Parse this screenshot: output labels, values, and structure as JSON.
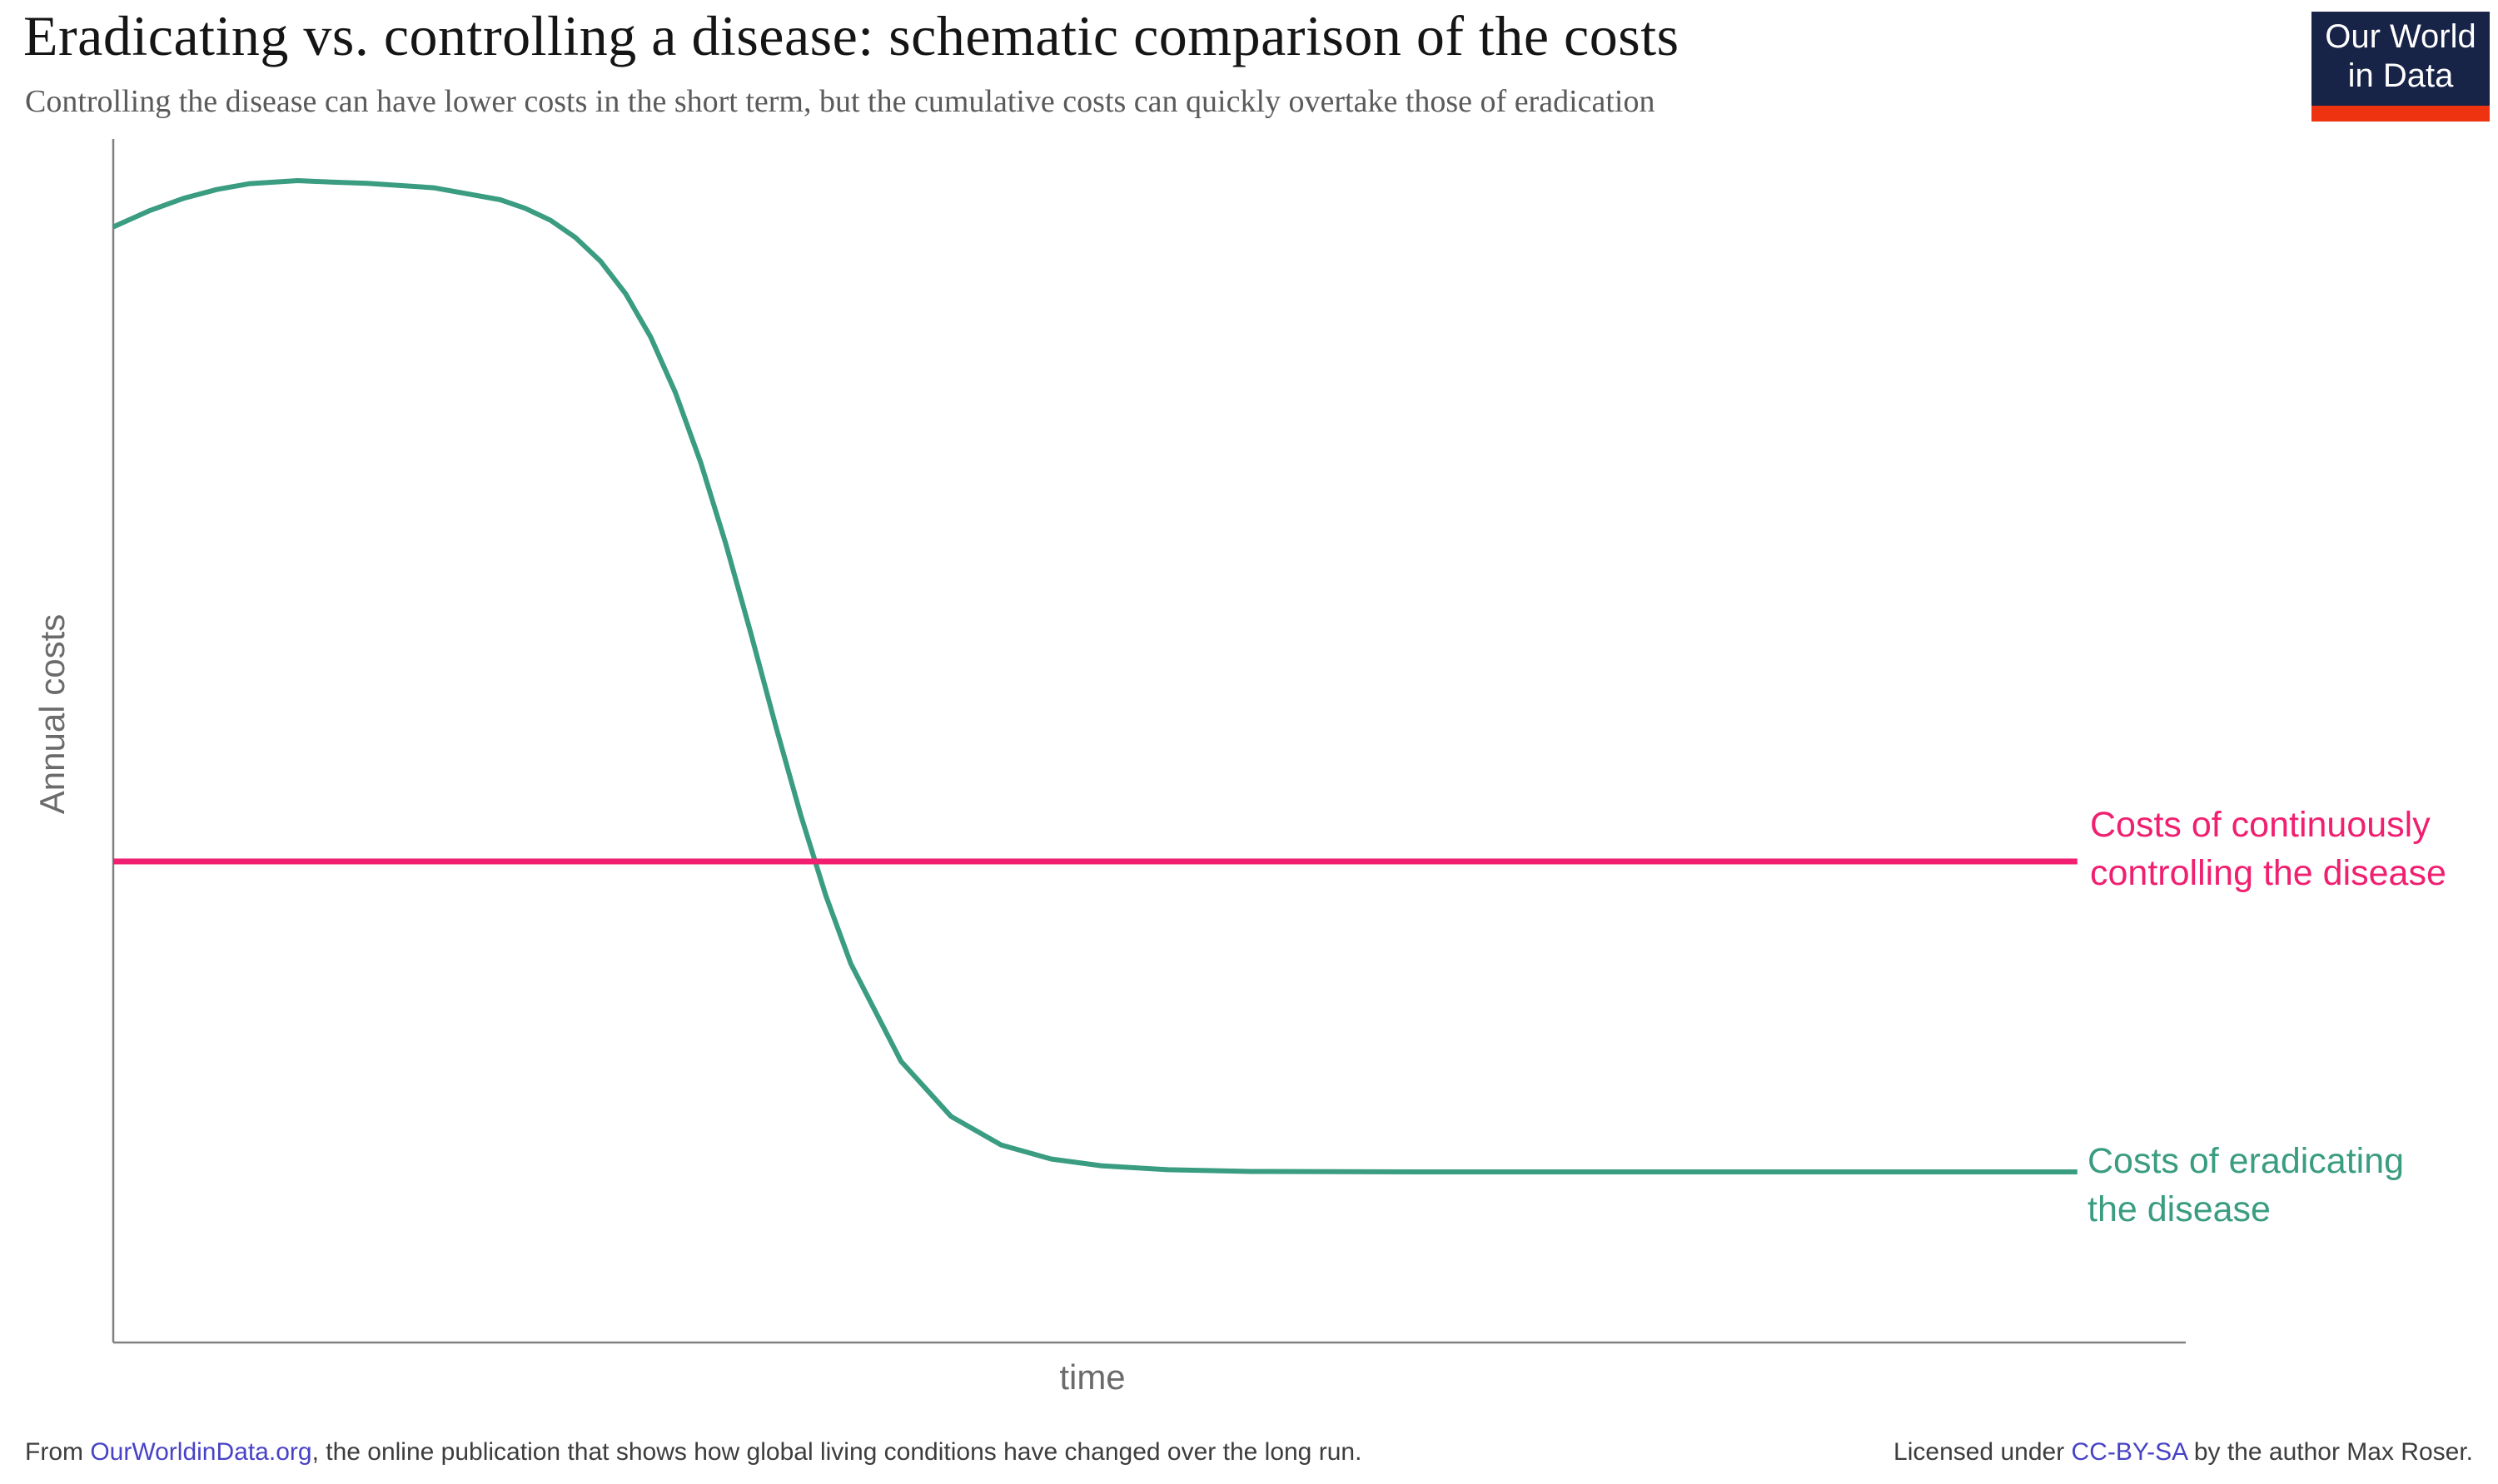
{
  "header": {
    "title": "Eradicating vs. controlling a disease: schematic comparison of the costs",
    "subtitle": "Controlling the disease can have lower costs in the short term, but the cumulative costs can quickly overtake those of eradication"
  },
  "logo": {
    "line1": "Our World",
    "line2": "in Data",
    "background": "#182348",
    "accent_bar": "#ee3311"
  },
  "labels": {
    "y_axis": "Annual costs",
    "x_axis": "time",
    "control_line_1": "Costs of continuously",
    "control_line_2": "controlling the disease",
    "eradication_line_1": "Costs of eradicating",
    "eradication_line_2": "the disease"
  },
  "colors": {
    "control": "#f01f70",
    "eradication": "#3a9c80",
    "axis": "#808080",
    "link": "#4843c6",
    "title_text": "#151515",
    "subtitle_text": "#5a5a5a",
    "axis_label_text": "#6b6b6b",
    "footer_text": "#3d3d3d"
  },
  "chart_data": {
    "type": "line",
    "title": "Eradicating vs. controlling a disease: schematic comparison of the costs",
    "xlabel": "time",
    "ylabel": "Annual costs",
    "x_range": [
      0,
      1
    ],
    "y_range": [
      0,
      1
    ],
    "grid": false,
    "ticks": "none (schematic axes without numeric scale)",
    "legend_position": "labels at right end of each line",
    "series": [
      {
        "name": "Costs of eradicating the disease",
        "color": "#3a9c80",
        "width": 6,
        "points": [
          [
            0.0,
            0.927
          ],
          [
            0.0177,
            0.9406
          ],
          [
            0.0338,
            0.9506
          ],
          [
            0.0499,
            0.958
          ],
          [
            0.066,
            0.9629
          ],
          [
            0.089,
            0.9654
          ],
          [
            0.1063,
            0.9641
          ],
          [
            0.1224,
            0.9632
          ],
          [
            0.1546,
            0.9595
          ],
          [
            0.1868,
            0.9495
          ],
          [
            0.1988,
            0.9424
          ],
          [
            0.211,
            0.9324
          ],
          [
            0.223,
            0.9182
          ],
          [
            0.2351,
            0.8985
          ],
          [
            0.2472,
            0.8715
          ],
          [
            0.2593,
            0.8355
          ],
          [
            0.2713,
            0.789
          ],
          [
            0.2834,
            0.7315
          ],
          [
            0.2955,
            0.664
          ],
          [
            0.3076,
            0.5896
          ],
          [
            0.3196,
            0.5125
          ],
          [
            0.3317,
            0.4384
          ],
          [
            0.3438,
            0.3715
          ],
          [
            0.3559,
            0.3147
          ],
          [
            0.3801,
            0.2337
          ],
          [
            0.4042,
            0.1879
          ],
          [
            0.4284,
            0.1642
          ],
          [
            0.4525,
            0.1525
          ],
          [
            0.4767,
            0.1469
          ],
          [
            0.5089,
            0.1436
          ],
          [
            0.5491,
            0.1421
          ],
          [
            0.6296,
            0.1418
          ],
          [
            0.7504,
            0.1418
          ],
          [
            0.9477,
            0.1418
          ]
        ]
      },
      {
        "name": "Costs of continuously controlling the disease",
        "color": "#f01f70",
        "width": 7,
        "points": [
          [
            0.0,
            0.3997
          ],
          [
            0.9477,
            0.3997
          ]
        ]
      }
    ]
  },
  "footer": {
    "left_prefix": "From ",
    "left_link": "OurWorldinData.org",
    "left_suffix": ", the online publication that shows how global living conditions have changed over the long run.",
    "right_prefix": "Licensed under ",
    "right_link": "CC-BY-SA",
    "right_suffix": " by the author Max Roser."
  }
}
